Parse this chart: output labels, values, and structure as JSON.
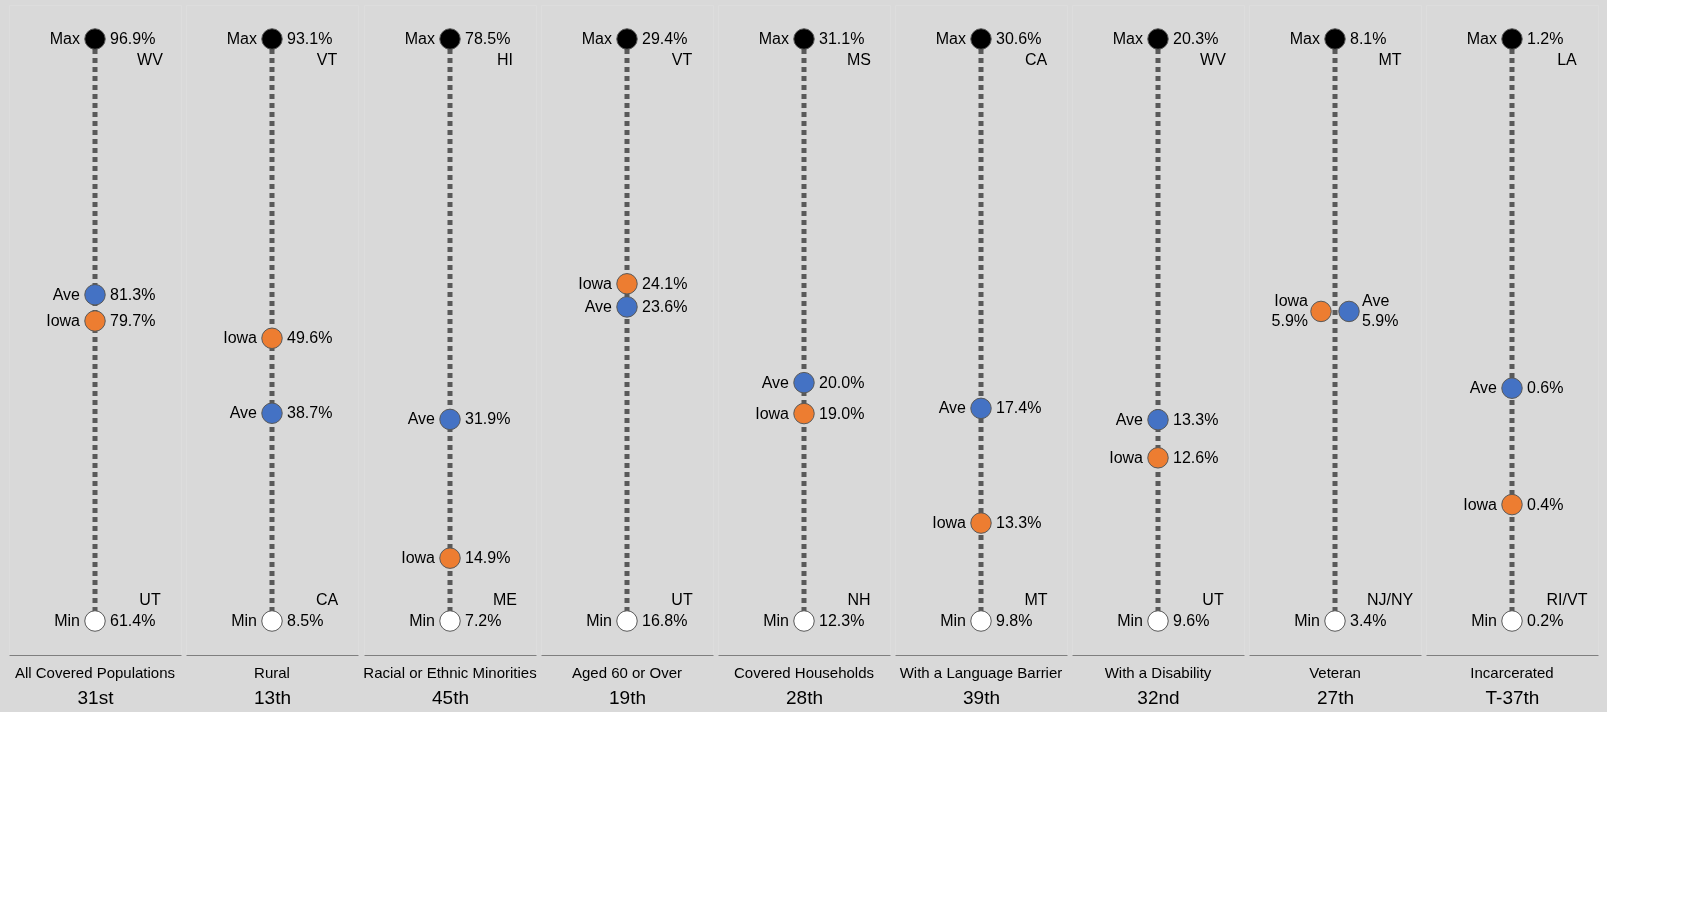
{
  "chart_data": {
    "type": "other",
    "categories": [
      "All Covered Populations",
      "Rural",
      "Racial or Ethnic Minorities",
      "Aged 60 or Over",
      "Covered Households",
      "With a Language Barrier",
      "With a Disability",
      "Veteran",
      "Incarcerated"
    ],
    "series": [
      {
        "name": "Max",
        "color": "#000000",
        "values": [
          96.9,
          93.1,
          78.5,
          29.4,
          31.1,
          30.6,
          20.3,
          8.1,
          1.2
        ],
        "value_labels": [
          "96.9%",
          "93.1%",
          "78.5%",
          "29.4%",
          "31.1%",
          "30.6%",
          "20.3%",
          "8.1%",
          "1.2%"
        ]
      },
      {
        "name": "Iowa",
        "color": "#ed7d31",
        "values": [
          79.7,
          49.6,
          14.9,
          24.1,
          19.0,
          13.3,
          12.6,
          5.9,
          0.4
        ],
        "value_labels": [
          "79.7%",
          "49.6%",
          "14.9%",
          "24.1%",
          "19.0%",
          "13.3%",
          "12.6%",
          "5.9%",
          "0.4%"
        ]
      },
      {
        "name": "Ave",
        "color": "#4472c4",
        "values": [
          81.3,
          38.7,
          31.9,
          23.6,
          20.0,
          17.4,
          13.3,
          5.9,
          0.6
        ],
        "value_labels": [
          "81.3%",
          "38.7%",
          "31.9%",
          "23.6%",
          "20.0%",
          "17.4%",
          "13.3%",
          "5.9%",
          "0.6%"
        ]
      },
      {
        "name": "Min",
        "color": "#ffffff",
        "values": [
          61.4,
          8.5,
          7.2,
          16.8,
          12.3,
          9.8,
          9.6,
          3.4,
          0.2
        ],
        "value_labels": [
          "61.4%",
          "8.5%",
          "7.2%",
          "16.8%",
          "12.3%",
          "9.8%",
          "9.6%",
          "3.4%",
          "0.2%"
        ]
      }
    ],
    "annotations": [
      {
        "text": "WV",
        "x": "All Covered Populations"
      },
      {
        "text": "UT",
        "x": "All Covered Populations"
      },
      {
        "text": "31st",
        "x": "All Covered Populations"
      },
      {
        "text": "VT",
        "x": "Rural"
      },
      {
        "text": "CA",
        "x": "Rural"
      },
      {
        "text": "13th",
        "x": "Rural"
      },
      {
        "text": "HI",
        "x": "Racial or Ethnic Minorities"
      },
      {
        "text": "ME",
        "x": "Racial or Ethnic Minorities"
      },
      {
        "text": "45th",
        "x": "Racial or Ethnic Minorities"
      },
      {
        "text": "VT",
        "x": "Aged 60 or Over"
      },
      {
        "text": "UT",
        "x": "Aged 60 or Over"
      },
      {
        "text": "19th",
        "x": "Aged 60 or Over"
      },
      {
        "text": "MS",
        "x": "Covered Households"
      },
      {
        "text": "NH",
        "x": "Covered Households"
      },
      {
        "text": "28th",
        "x": "Covered Households"
      },
      {
        "text": "CA",
        "x": "With a Language Barrier"
      },
      {
        "text": "MT",
        "x": "With a Language Barrier"
      },
      {
        "text": "39th",
        "x": "With a Language Barrier"
      },
      {
        "text": "WV",
        "x": "With a Disability"
      },
      {
        "text": "UT",
        "x": "With a Disability"
      },
      {
        "text": "32nd",
        "x": "With a Disability"
      },
      {
        "text": "MT",
        "x": "Veteran"
      },
      {
        "text": "NJ/NY",
        "x": "Veteran"
      },
      {
        "text": "27th",
        "x": "Veteran"
      },
      {
        "text": "LA",
        "x": "Incarcerated"
      },
      {
        "text": "RI/VT",
        "x": "Incarcerated"
      },
      {
        "text": "T-37th",
        "x": "Incarcerated"
      }
    ]
  }
}
